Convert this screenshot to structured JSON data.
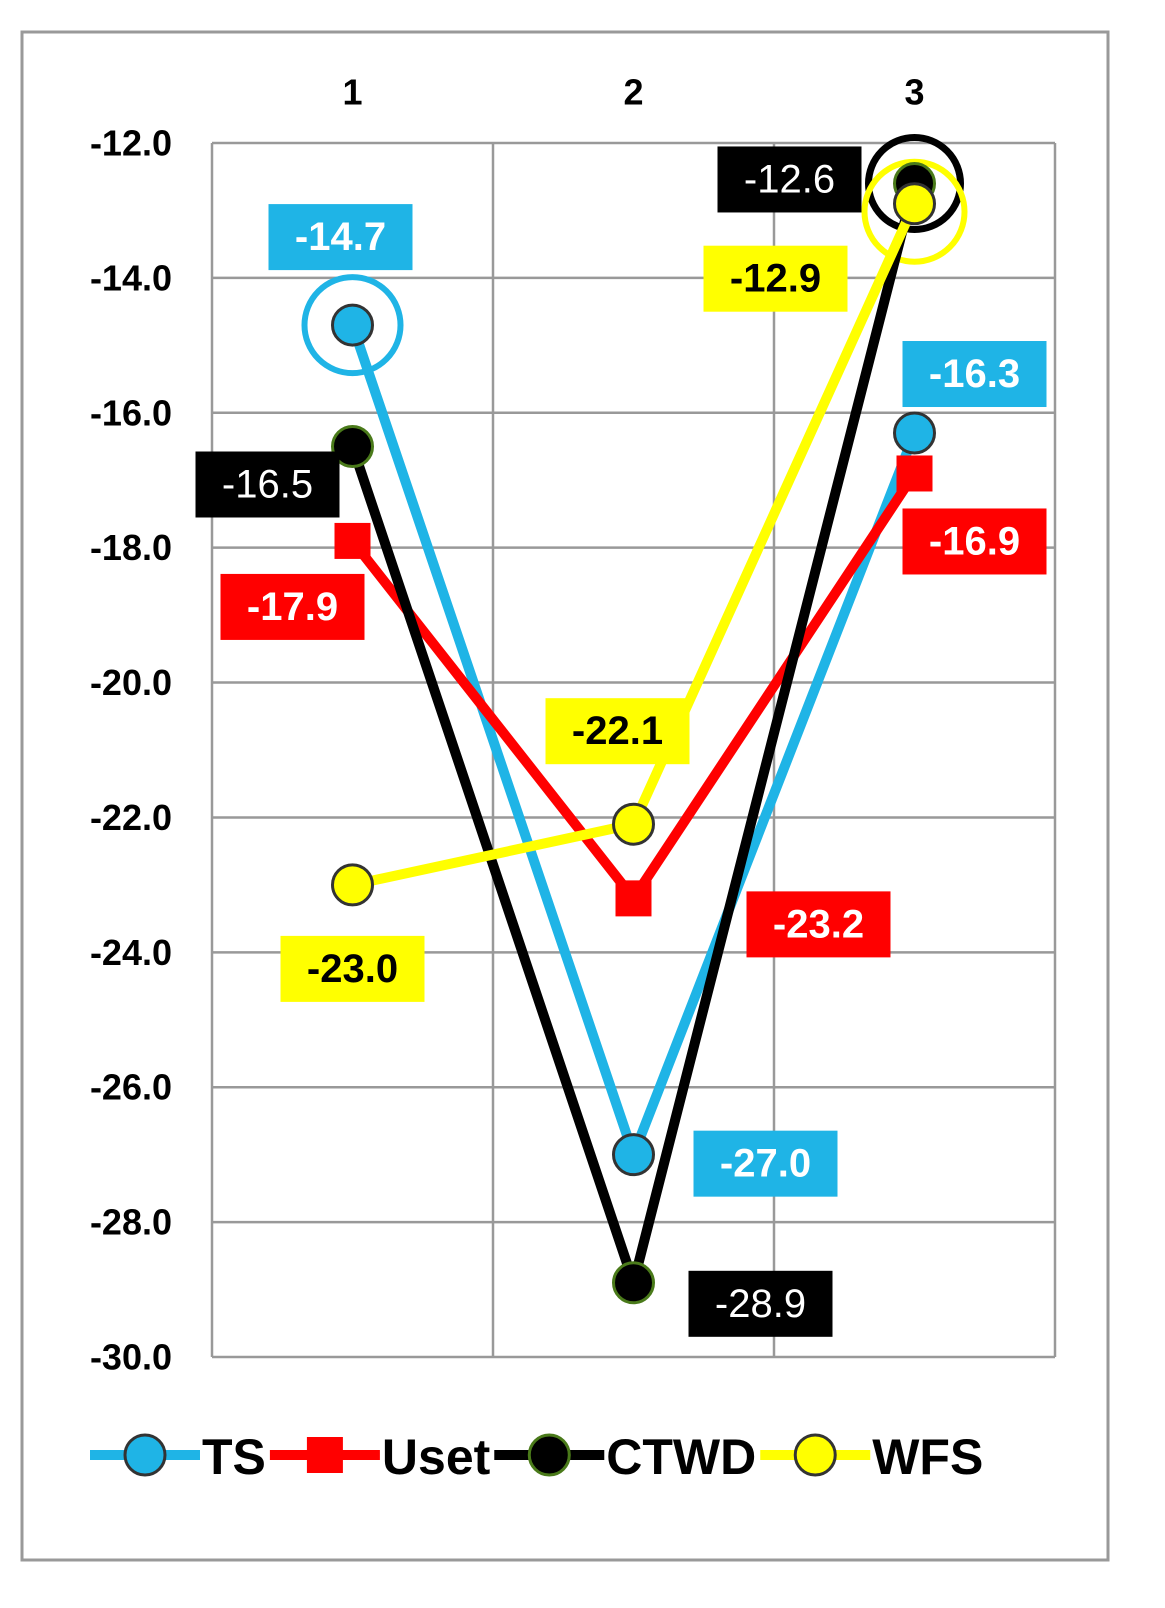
{
  "chart_data": {
    "type": "line",
    "categories": [
      "1",
      "2",
      "3"
    ],
    "series": [
      {
        "name": "TS",
        "color": "#1fb4e6",
        "values": [
          -14.7,
          -27.0,
          -16.3
        ],
        "value_labels": [
          "-14.7",
          "-27.0",
          "-16.3"
        ]
      },
      {
        "name": "Uset",
        "color": "#ff0000",
        "values": [
          -17.9,
          -23.2,
          -16.9
        ],
        "value_labels": [
          "-17.9",
          "-23.2",
          "-16.9"
        ]
      },
      {
        "name": "CTWD",
        "color": "#000000",
        "values": [
          -16.5,
          -28.9,
          -12.6
        ],
        "value_labels": [
          "-16.5",
          "-28.9",
          "-12.6"
        ]
      },
      {
        "name": "WFS",
        "color": "#ffff00",
        "values": [
          -23.0,
          -22.1,
          -12.9
        ],
        "value_labels": [
          "-23.0",
          "-22.1",
          "-12.9"
        ]
      }
    ],
    "ylim": [
      -30,
      -12
    ],
    "yticks": [
      {
        "value": -12,
        "label": "-12.0"
      },
      {
        "value": -14,
        "label": "-14.0"
      },
      {
        "value": -16,
        "label": "-16.0"
      },
      {
        "value": -18,
        "label": "-18.0"
      },
      {
        "value": -20,
        "label": "-20.0"
      },
      {
        "value": -22,
        "label": "-22.0"
      },
      {
        "value": -24,
        "label": "-24.0"
      },
      {
        "value": -26,
        "label": "-26.0"
      },
      {
        "value": -28,
        "label": "-28.0"
      },
      {
        "value": -30,
        "label": "-30.0"
      }
    ],
    "grid": true,
    "legend": "bottom"
  }
}
